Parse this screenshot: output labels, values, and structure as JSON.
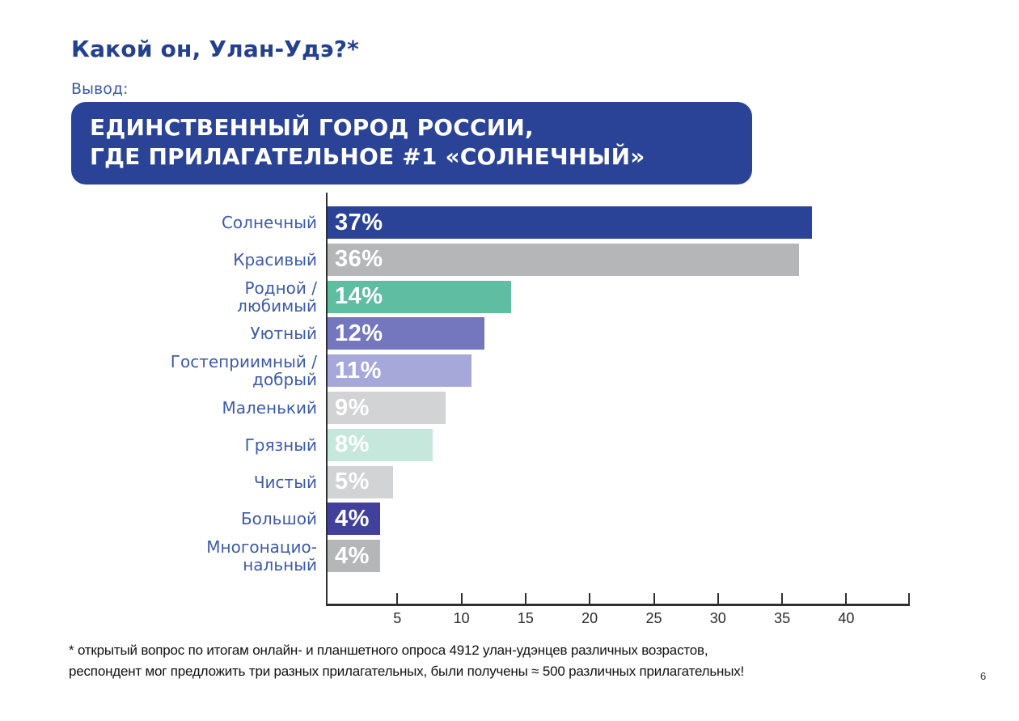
{
  "page": {
    "title": "Какой он, Улан-Удэ?*",
    "conclusion_label": "Вывод:",
    "banner": {
      "line1": "ЕДИНСТВЕННЫЙ ГОРОД РОССИИ,",
      "line2": "ГДЕ ПРИЛАГАТЕЛЬНОЕ #1 «СОЛНЕЧНЫЙ»",
      "bg_color": "#2a4396",
      "text_color": "#ffffff"
    },
    "footnote_line1": "* открытый вопрос по итогам онлайн- и планшетного опроса 4912 улан-удэнцев различных возрастов,",
    "footnote_line2": "респондент мог предложить три разных прилагательных, были получены ≈ 500 различных прилагательных!",
    "page_number": "6",
    "title_color": "#24418e",
    "background_color": "#ffffff"
  },
  "chart_data": {
    "type": "bar",
    "orientation": "horizontal",
    "title": "",
    "xlabel": "",
    "ylabel": "",
    "categories": [
      "Солнечный",
      "Красивый",
      "Родной /\nлюбимый",
      "Уютный",
      "Гостеприимный /\nдобрый",
      "Маленький",
      "Грязный",
      "Чистый",
      "Большой",
      "Многонацио-\nнальный"
    ],
    "values": [
      37,
      36,
      14,
      12,
      11,
      9,
      8,
      5,
      4,
      4
    ],
    "value_labels": [
      "37%",
      "36%",
      "14%",
      "12%",
      "11%",
      "9%",
      "8%",
      "5%",
      "4%",
      "4%"
    ],
    "bar_colors": [
      "#2a4397",
      "#b5b6b8",
      "#5fbda2",
      "#7477bd",
      "#a5a8d8",
      "#d2d3d5",
      "#c6e7dc",
      "#d2d3d5",
      "#41419d",
      "#b5b6b8"
    ],
    "category_label_color": "#3d5ba6",
    "value_text_color": "#ffffff",
    "xticks": [
      5,
      10,
      15,
      20,
      25,
      30,
      35,
      40
    ],
    "xlim": [
      0,
      44.7
    ],
    "axis_color": "#2f2f2f",
    "grid": false,
    "legend": false
  }
}
